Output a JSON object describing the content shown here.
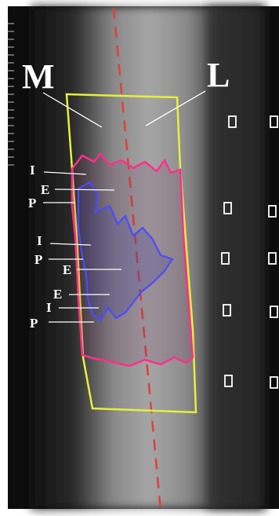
{
  "orientation": {
    "medial": "M",
    "lateral": "L"
  },
  "annotations": [
    "I",
    "E",
    "P",
    "I",
    "P",
    "E",
    "E",
    "I",
    "P"
  ]
}
